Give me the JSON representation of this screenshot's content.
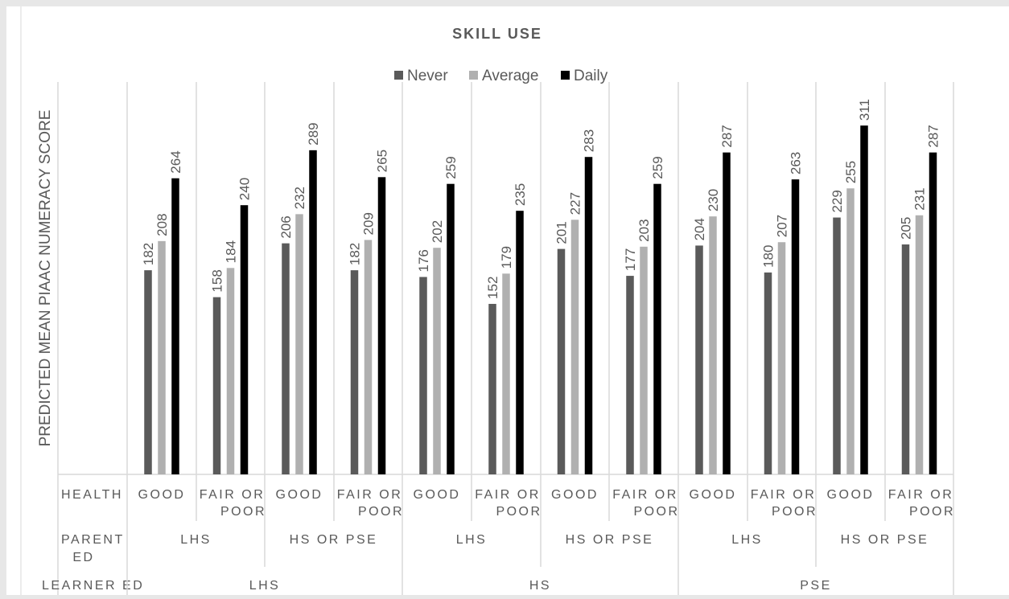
{
  "chart_data": {
    "type": "bar",
    "title": "SKILL USE",
    "ylabel": "PREDICTED MEAN PIAAC NUMERACY SCORE",
    "ylim": [
      0,
      330
    ],
    "legend": "top-center",
    "grid": false,
    "colors": {
      "Never": "#5a5a5a",
      "Average": "#b0b0b0",
      "Daily": "#000000"
    },
    "axis_row_labels": {
      "health": "HEALTH",
      "parent_ed": "PARENT ED",
      "learner_ed": "LEARNER ED"
    },
    "categories": [
      {
        "health": "GOOD",
        "parent_ed": "LHS",
        "learner_ed": "LHS"
      },
      {
        "health": "FAIR OR POOR",
        "parent_ed": "LHS",
        "learner_ed": "LHS"
      },
      {
        "health": "GOOD",
        "parent_ed": "HS OR PSE",
        "learner_ed": "LHS"
      },
      {
        "health": "FAIR OR POOR",
        "parent_ed": "HS OR PSE",
        "learner_ed": "LHS"
      },
      {
        "health": "GOOD",
        "parent_ed": "LHS",
        "learner_ed": "HS"
      },
      {
        "health": "FAIR OR POOR",
        "parent_ed": "LHS",
        "learner_ed": "HS"
      },
      {
        "health": "GOOD",
        "parent_ed": "HS OR PSE",
        "learner_ed": "HS"
      },
      {
        "health": "FAIR OR POOR",
        "parent_ed": "HS OR PSE",
        "learner_ed": "HS"
      },
      {
        "health": "GOOD",
        "parent_ed": "LHS",
        "learner_ed": "PSE"
      },
      {
        "health": "FAIR OR POOR",
        "parent_ed": "LHS",
        "learner_ed": "PSE"
      },
      {
        "health": "GOOD",
        "parent_ed": "HS OR PSE",
        "learner_ed": "PSE"
      },
      {
        "health": "FAIR OR POOR",
        "parent_ed": "HS OR PSE",
        "learner_ed": "PSE"
      }
    ],
    "series": [
      {
        "name": "Never",
        "values": [
          182,
          158,
          206,
          182,
          176,
          152,
          201,
          177,
          204,
          180,
          229,
          205
        ]
      },
      {
        "name": "Average",
        "values": [
          208,
          184,
          232,
          209,
          202,
          179,
          227,
          203,
          230,
          207,
          255,
          231
        ]
      },
      {
        "name": "Daily",
        "values": [
          264,
          240,
          289,
          265,
          259,
          235,
          283,
          259,
          287,
          263,
          311,
          287
        ]
      }
    ]
  }
}
